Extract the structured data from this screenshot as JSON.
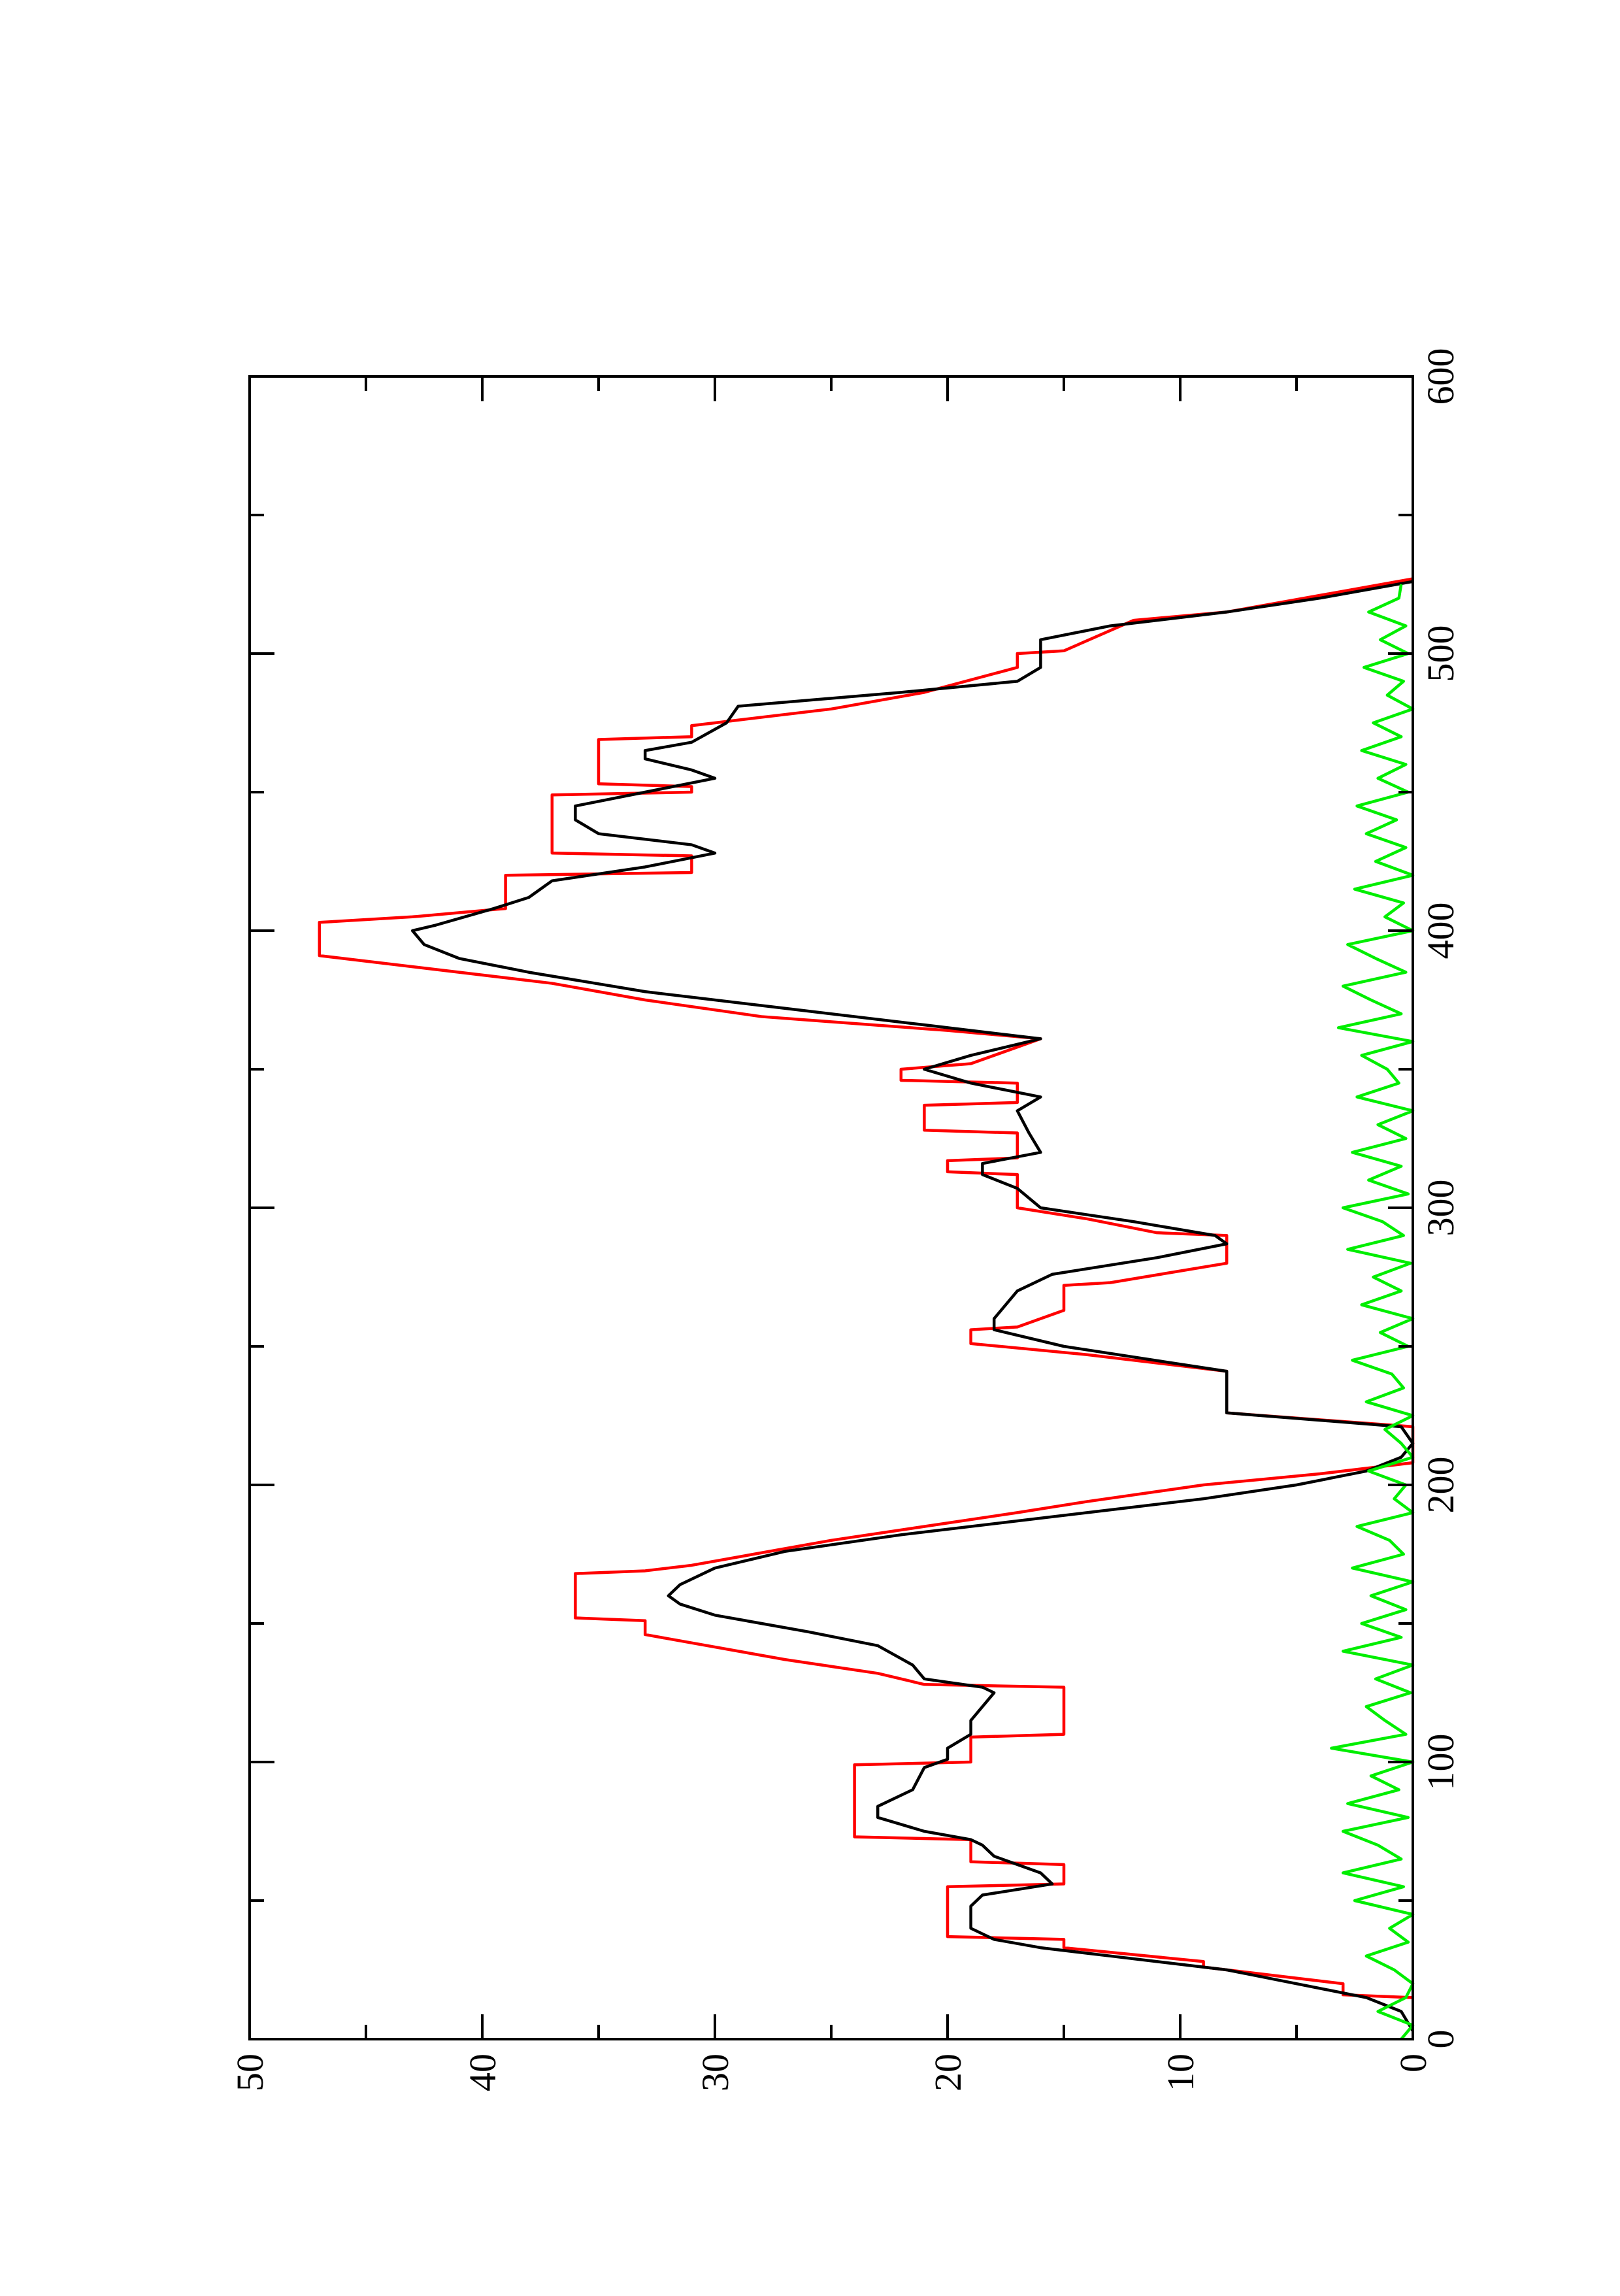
{
  "chart_data": {
    "type": "line",
    "xlim": [
      0,
      600
    ],
    "xticks": [
      0,
      100,
      200,
      300,
      400,
      500,
      600
    ],
    "ylim": [
      0,
      50
    ],
    "yticks": [
      0,
      10,
      20,
      30,
      40,
      50
    ],
    "grid": false,
    "series": [
      {
        "color": "#ff0000",
        "x": [
          15,
          16,
          20,
          26,
          28,
          33,
          36,
          37,
          55,
          56,
          63,
          64,
          72,
          73,
          99,
          100,
          109,
          110,
          127,
          128,
          132,
          137,
          143,
          146,
          151,
          152,
          168,
          169,
          171,
          180,
          190,
          194,
          200,
          204,
          208,
          221,
          226,
          241,
          247,
          251,
          256,
          257,
          263,
          272,
          273,
          280,
          290,
          291,
          296,
          300,
          312,
          313,
          317,
          318,
          327,
          328,
          337,
          338,
          345,
          346,
          350,
          352,
          361,
          364,
          369,
          375,
          381,
          387,
          391,
          403,
          405,
          408,
          420,
          421,
          427,
          428,
          449,
          450,
          452,
          453,
          469,
          470,
          474,
          476,
          480,
          486,
          495,
          500,
          501,
          512,
          515,
          527
        ],
        "values": [
          0,
          3,
          3,
          9,
          9,
          15,
          15,
          20,
          20,
          15,
          15,
          19,
          19,
          24,
          24,
          19,
          19,
          15,
          15,
          21,
          23,
          27,
          31,
          33,
          33,
          36,
          36,
          33,
          31,
          25,
          17,
          14,
          9,
          4,
          0,
          0,
          8,
          8,
          14,
          19,
          19,
          17,
          15,
          15,
          13,
          8,
          8,
          11,
          14,
          17,
          17,
          20,
          20,
          17,
          17,
          21,
          21,
          17,
          17,
          22,
          22,
          19,
          16,
          20,
          28,
          33,
          37,
          43,
          47,
          47,
          43,
          39,
          39,
          31,
          31,
          37,
          37,
          31,
          31,
          35,
          35,
          31,
          31,
          29,
          25,
          21,
          17,
          17,
          15,
          12,
          8,
          0
        ]
      },
      {
        "color": "#000000",
        "x": [
          3,
          10,
          15,
          20,
          25,
          30,
          33,
          36,
          40,
          48,
          52,
          56,
          60,
          63,
          66,
          70,
          72,
          75,
          80,
          84,
          90,
          98,
          101,
          105,
          110,
          115,
          120,
          125,
          127,
          130,
          135,
          142,
          147,
          150,
          153,
          157,
          160,
          164,
          170,
          176,
          182,
          190,
          195,
          200,
          205,
          210,
          215,
          221,
          226,
          241,
          250,
          256,
          260,
          270,
          276,
          282,
          287,
          290,
          295,
          300,
          307,
          312,
          316,
          320,
          327,
          335,
          340,
          345,
          350,
          355,
          361,
          366,
          372,
          378,
          385,
          390,
          395,
          400,
          402,
          408,
          412,
          418,
          423,
          428,
          431,
          435,
          440,
          445,
          450,
          455,
          458,
          462,
          465,
          468,
          475,
          481,
          486,
          490,
          495,
          505,
          510,
          515,
          520,
          526
        ],
        "values": [
          0,
          0.5,
          2,
          5,
          8,
          13,
          16,
          18,
          19,
          19,
          18.5,
          15.5,
          16,
          17,
          18,
          18.5,
          19,
          21,
          23,
          23,
          21.5,
          21,
          20,
          20,
          19,
          19,
          18.5,
          18,
          18.5,
          21,
          21.5,
          23,
          26,
          28,
          30,
          31.5,
          32,
          31.5,
          30,
          27,
          22,
          14,
          9,
          5,
          2,
          0.5,
          0,
          0.5,
          8,
          8,
          15,
          18,
          18,
          17,
          15.5,
          11,
          8,
          8.5,
          12,
          16,
          17,
          18.5,
          18.5,
          16,
          16.5,
          17,
          16,
          19,
          21,
          19,
          16,
          21,
          27,
          33,
          38,
          41,
          42.5,
          43,
          42,
          39.5,
          38,
          37,
          33,
          30,
          31,
          35,
          36,
          36,
          33,
          30,
          31,
          33,
          33,
          31,
          29.5,
          29,
          22,
          17,
          16,
          16,
          13,
          8,
          4,
          0
        ]
      },
      {
        "color": "#00ee00",
        "x": [
          0,
          5,
          10,
          15,
          20,
          25,
          30,
          35,
          40,
          45,
          50,
          55,
          60,
          65,
          70,
          75,
          80,
          85,
          90,
          95,
          100,
          105,
          110,
          115,
          120,
          125,
          130,
          135,
          140,
          145,
          150,
          155,
          160,
          165,
          170,
          175,
          180,
          185,
          190,
          195,
          200,
          205,
          210,
          215,
          220,
          225,
          230,
          235,
          240,
          245,
          250,
          255,
          260,
          265,
          270,
          275,
          280,
          285,
          290,
          295,
          300,
          305,
          310,
          315,
          320,
          325,
          330,
          335,
          340,
          345,
          350,
          355,
          360,
          365,
          370,
          375,
          380,
          385,
          390,
          395,
          400,
          405,
          410,
          415,
          420,
          425,
          430,
          435,
          440,
          445,
          450,
          455,
          460,
          465,
          470,
          475,
          480,
          485,
          490,
          495,
          500,
          505,
          510,
          515,
          520,
          525
        ],
        "values": [
          0.5,
          0,
          1.5,
          0.3,
          0,
          0.8,
          2,
          0.2,
          1,
          0,
          2.5,
          0.4,
          3,
          0.5,
          1.5,
          3,
          0.2,
          2.8,
          0.6,
          1.8,
          0,
          3.5,
          0.3,
          1.2,
          2,
          0.1,
          1.6,
          0,
          3,
          0.5,
          2.2,
          0.3,
          1.8,
          0,
          2.6,
          0.4,
          1,
          2.4,
          0,
          0.8,
          0.3,
          1.9,
          0,
          0.5,
          1.2,
          0,
          2,
          0.4,
          0.9,
          2.6,
          0.2,
          1.4,
          0,
          2.2,
          0.5,
          1.7,
          0.1,
          2.8,
          0.4,
          1.3,
          3,
          0.2,
          1.9,
          0.5,
          2.6,
          0.3,
          1.5,
          0,
          2.4,
          0.6,
          1.1,
          2.2,
          0,
          3.2,
          0.5,
          1.8,
          3,
          0.3,
          1.6,
          2.8,
          0,
          1.2,
          0.4,
          2.5,
          0,
          1.6,
          0.3,
          2,
          0.7,
          2.4,
          0.2,
          1.5,
          0.3,
          2.2,
          0.5,
          1.7,
          0,
          1.1,
          0.4,
          2.1,
          0.2,
          1.4,
          0.3,
          1.9,
          0.6,
          0.5
        ]
      }
    ]
  }
}
